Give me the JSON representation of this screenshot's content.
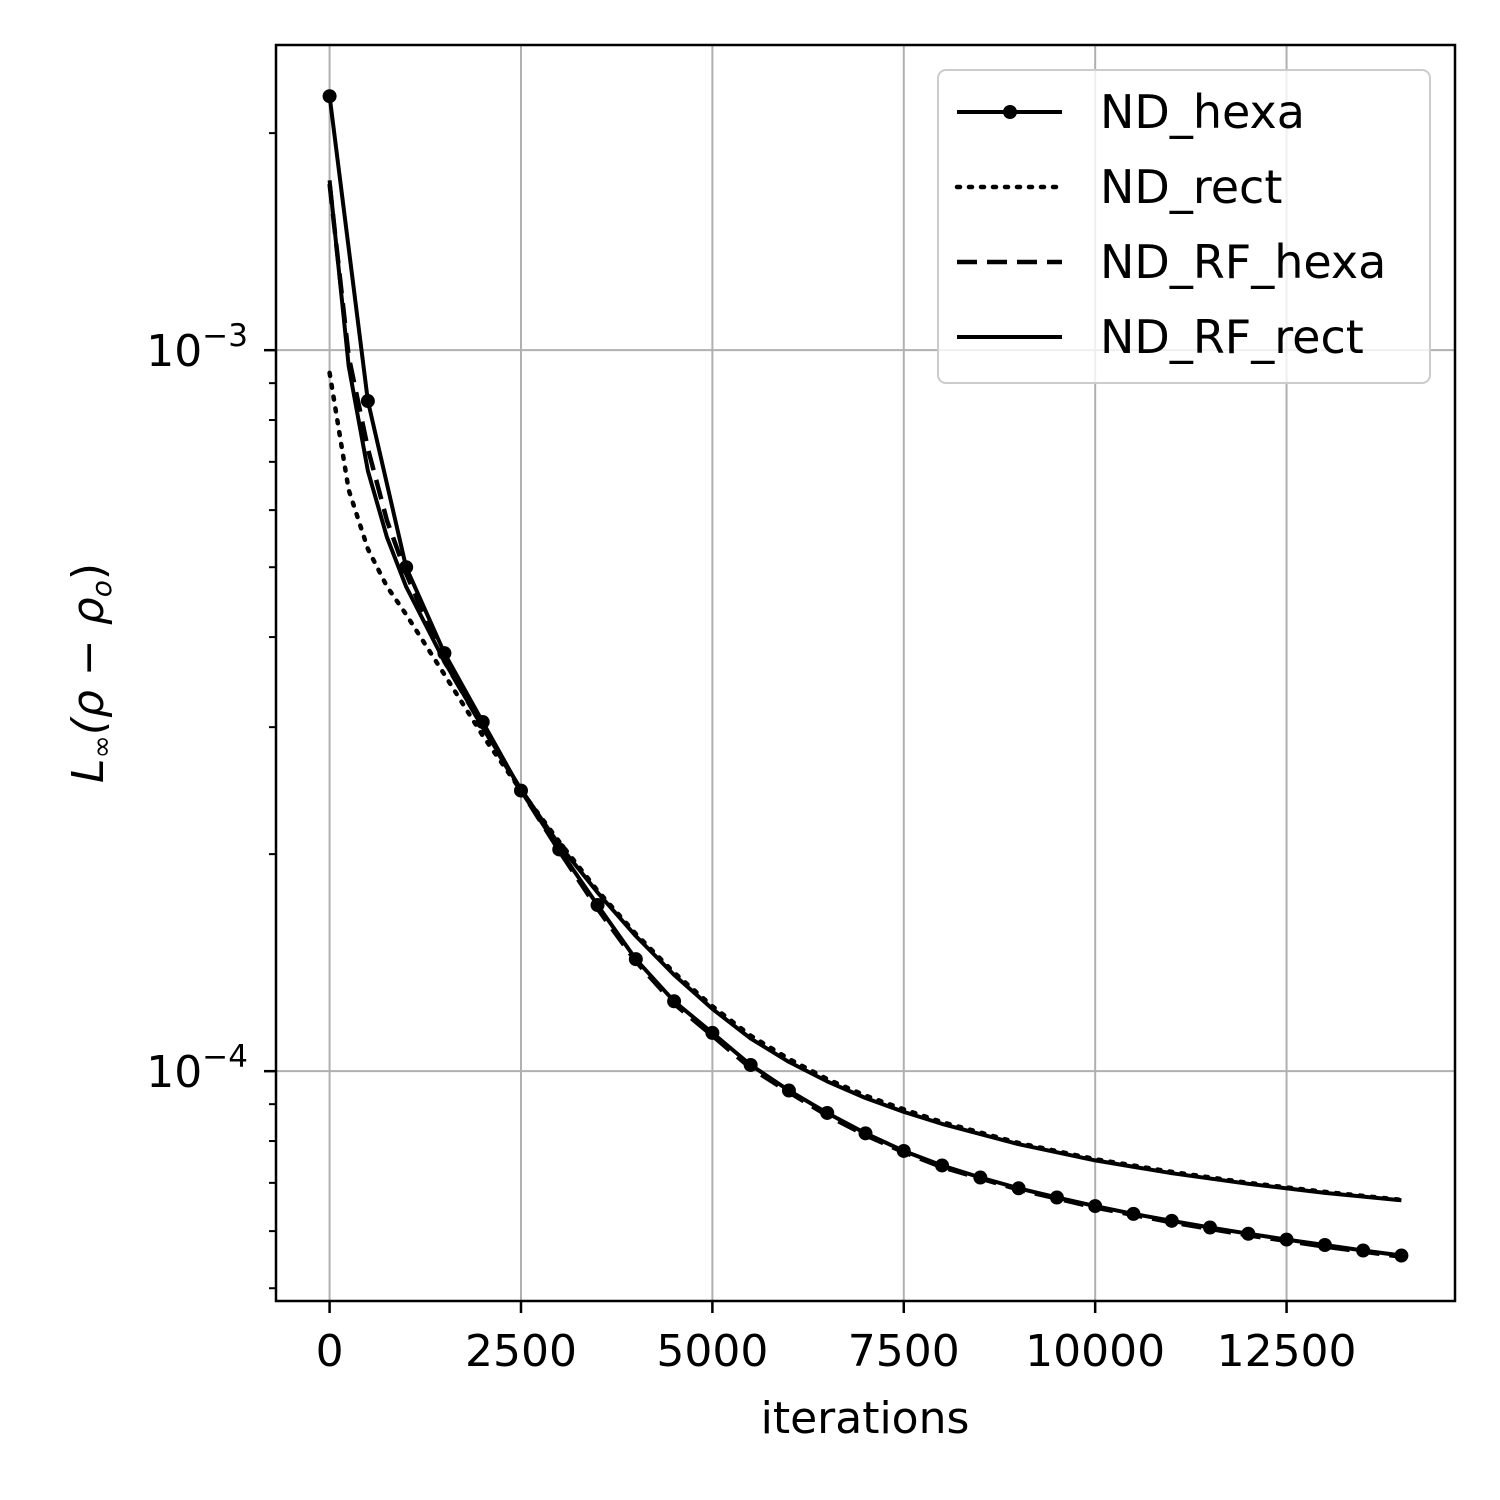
{
  "chart_data": {
    "type": "line",
    "xlabel": "iterations",
    "ylabel": "L∞(ρ − ρo)",
    "ylabel_parts": {
      "main": "L",
      "sub": "∞",
      "open": "(ρ − ρ",
      "sub2": "o",
      "close": ")"
    },
    "yscale": "log",
    "xlim": [
      -700,
      14700
    ],
    "ylim": [
      4.8e-05,
      0.00265
    ],
    "xticks": [
      0,
      2500,
      5000,
      7500,
      10000,
      12500
    ],
    "xtick_labels": [
      "0",
      "2500",
      "5000",
      "7500",
      "10000",
      "12500"
    ],
    "yticks_major": [
      0.001,
      0.0001
    ],
    "ytick_labels": [
      {
        "base": "10",
        "exp": "−3"
      },
      {
        "base": "10",
        "exp": "−4"
      }
    ],
    "yticks_minor": [
      5e-05,
      6e-05,
      7e-05,
      8e-05,
      9e-05,
      0.0002,
      0.0003,
      0.0004,
      0.0005,
      0.0006,
      0.0007,
      0.0008,
      0.0009,
      0.002
    ],
    "grid": true,
    "legend_position": "top-right",
    "series": [
      {
        "name": "ND_hexa",
        "style": "solid-marker",
        "x": [
          0,
          500,
          1000,
          1500,
          2000,
          2500,
          3000,
          3500,
          4000,
          4500,
          5000,
          5500,
          6000,
          6500,
          7000,
          7500,
          8000,
          8500,
          9000,
          9500,
          10000,
          10500,
          11000,
          11500,
          12000,
          12500,
          13000,
          13500,
          14000
        ],
        "y": [
          0.00225,
          0.00085,
          0.0005,
          0.00038,
          0.000305,
          0.000245,
          0.000203,
          0.00017,
          0.000143,
          0.000125,
          0.000113,
          0.000102,
          9.4e-05,
          8.75e-05,
          8.2e-05,
          7.75e-05,
          7.4e-05,
          7.12e-05,
          6.88e-05,
          6.68e-05,
          6.5e-05,
          6.34e-05,
          6.2e-05,
          6.07e-05,
          5.95e-05,
          5.84e-05,
          5.74e-05,
          5.64e-05,
          5.55e-05
        ]
      },
      {
        "name": "ND_rect",
        "style": "dotted",
        "x": [
          0,
          250,
          500,
          750,
          1000,
          1500,
          2000,
          2500,
          3000,
          3500,
          4000,
          4500,
          5000,
          5500,
          6000,
          6500,
          7000,
          7500,
          8000,
          9000,
          10000,
          11000,
          12000,
          13000,
          14000
        ],
        "y": [
          0.00093,
          0.00064,
          0.00053,
          0.00047,
          0.00043,
          0.000355,
          0.000292,
          0.000245,
          0.000208,
          0.000178,
          0.000155,
          0.000137,
          0.000123,
          0.000112,
          0.000104,
          9.75e-05,
          9.25e-05,
          8.85e-05,
          8.5e-05,
          7.95e-05,
          7.55e-05,
          7.25e-05,
          7e-05,
          6.8e-05,
          6.63e-05
        ]
      },
      {
        "name": "ND_RF_hexa",
        "style": "dashed",
        "x": [
          0,
          250,
          500,
          750,
          1000,
          1500,
          2000,
          2500,
          3000,
          3500,
          4000,
          4500,
          5000,
          5500,
          6000,
          6500,
          7000,
          7500,
          8000,
          9000,
          10000,
          11000,
          12000,
          13000,
          14000
        ],
        "y": [
          0.0017,
          0.00098,
          0.00073,
          0.00058,
          0.00049,
          0.00037,
          0.0003,
          0.000245,
          0.000202,
          0.000168,
          0.000142,
          0.000124,
          0.000112,
          0.000101,
          9.35e-05,
          8.68e-05,
          8.15e-05,
          7.72e-05,
          7.36e-05,
          6.85e-05,
          6.47e-05,
          6.17e-05,
          5.92e-05,
          5.71e-05,
          5.53e-05
        ]
      },
      {
        "name": "ND_RF_rect",
        "style": "solid",
        "x": [
          0,
          250,
          500,
          750,
          1000,
          1500,
          2000,
          2500,
          3000,
          3500,
          4000,
          4500,
          5000,
          5500,
          6000,
          6500,
          7000,
          7500,
          8000,
          9000,
          10000,
          11000,
          12000,
          13000,
          14000
        ],
        "y": [
          0.00172,
          0.00095,
          0.00068,
          0.00055,
          0.00047,
          0.00037,
          0.0003,
          0.000246,
          0.000206,
          0.000177,
          0.000154,
          0.000136,
          0.000122,
          0.000111,
          0.000103,
          9.68e-05,
          9.18e-05,
          8.78e-05,
          8.45e-05,
          7.92e-05,
          7.52e-05,
          7.22e-05,
          6.98e-05,
          6.78e-05,
          6.62e-05
        ]
      }
    ]
  }
}
